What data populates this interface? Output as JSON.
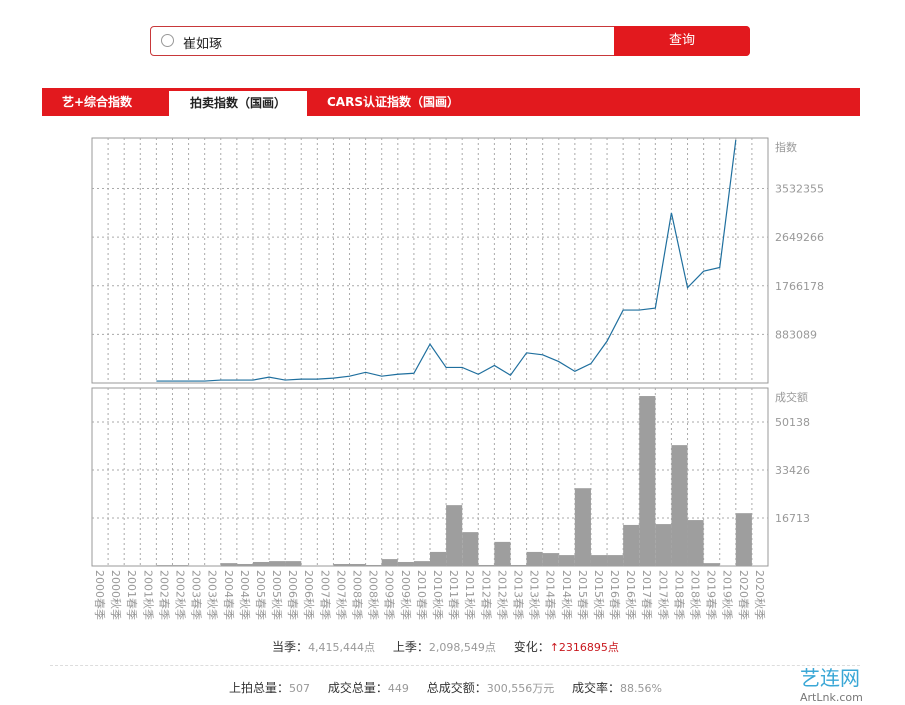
{
  "search": {
    "query": "崔如琢",
    "button": "查询"
  },
  "tabs": [
    "艺+综合指数",
    "拍卖指数（国画）",
    "CARS认证指数（国画）"
  ],
  "chart_data": [
    {
      "type": "line",
      "ylabel": "指数",
      "color": "#1f6f9e",
      "grid": true,
      "ylim": [
        0,
        4450000
      ],
      "yticks": [
        883089,
        1766178,
        2649266,
        3532355
      ],
      "values": [
        null,
        null,
        null,
        null,
        35000,
        35000,
        35000,
        35000,
        53000,
        53000,
        53000,
        106000,
        53000,
        70000,
        70000,
        88000,
        124000,
        194000,
        124000,
        159000,
        177000,
        706000,
        283000,
        283000,
        159000,
        318000,
        141000,
        548000,
        512000,
        389000,
        212000,
        353000,
        760000,
        1325000,
        1325000,
        1360000,
        3091000,
        1731000,
        2031000,
        2098549,
        4415444,
        null
      ]
    },
    {
      "type": "bar",
      "ylabel": "成交额",
      "color": "#9e9e9e",
      "grid": true,
      "ylim": [
        0,
        62000
      ],
      "yticks": [
        16713,
        33426,
        50138
      ],
      "categories": [
        "2000春季",
        "2000秋季",
        "2001春季",
        "2001秋季",
        "2002春季",
        "2002秋季",
        "2003春季",
        "2003秋季",
        "2004春季",
        "2004秋季",
        "2005春季",
        "2005秋季",
        "2006春季",
        "2006秋季",
        "2007春季",
        "2007秋季",
        "2008春季",
        "2008秋季",
        "2009春季",
        "2009秋季",
        "2010春季",
        "2010秋季",
        "2011春季",
        "2011秋季",
        "2012春季",
        "2012秋季",
        "2013春季",
        "2013秋季",
        "2014春季",
        "2014秋季",
        "2015春季",
        "2015秋季",
        "2016春季",
        "2016秋季",
        "2017春季",
        "2017秋季",
        "2018春季",
        "2018秋季",
        "2019春季",
        "2019秋季",
        "2020春季",
        "2020秋季"
      ],
      "values": [
        0,
        0,
        0,
        0,
        300,
        300,
        0,
        0,
        1000,
        700,
        1400,
        1700,
        1700,
        0,
        0,
        700,
        700,
        350,
        2400,
        1400,
        1700,
        4900,
        21200,
        11800,
        350,
        8400,
        350,
        4900,
        4500,
        3800,
        27100,
        3800,
        3800,
        14300,
        59200,
        14600,
        42100,
        16000,
        1000,
        0,
        18400,
        0
      ]
    }
  ],
  "stats": [
    [
      {
        "label": "当季：",
        "value": "4,415,444点"
      },
      {
        "label": "上季：",
        "value": "2,098,549点"
      },
      {
        "label": "变化：",
        "value": "↑2316895点"
      }
    ],
    [
      {
        "label": "上拍总量：",
        "value": "507"
      },
      {
        "label": "成交总量：",
        "value": "449"
      },
      {
        "label": "总成交额：",
        "value": "300,556万元"
      },
      {
        "label": "成交率：",
        "value": "88.56%"
      }
    ]
  ],
  "watermark": {
    "name": "艺连网",
    "url": "ArtLnk.com"
  }
}
